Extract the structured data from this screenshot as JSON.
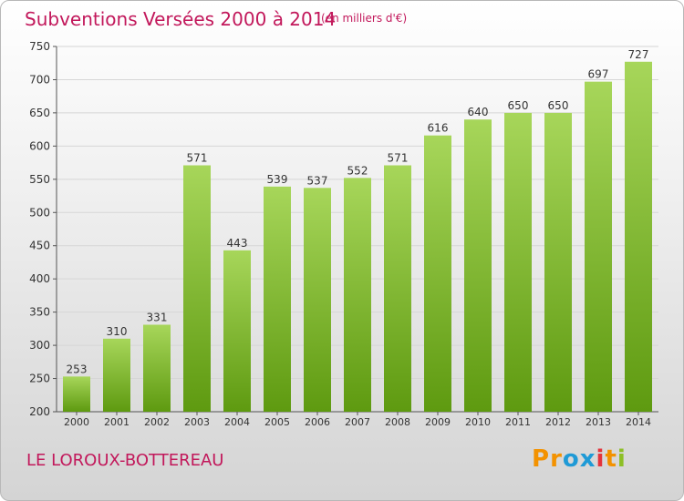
{
  "header": {
    "title": "Subventions Versées 2000 à 2014",
    "subtitle": "(en milliers d'€)"
  },
  "footer": {
    "town": "LE LOROUX-BOTTEREAU",
    "logo_text": "Proxiti"
  },
  "colors": {
    "bar_light": "#a7d65a",
    "bar_dark": "#5e9a10",
    "title": "#c2185b",
    "logo_letters": [
      "#f39200",
      "#f39200",
      "#1f9ad6",
      "#1f9ad6",
      "#e4343c",
      "#f39200",
      "#8dbf26"
    ]
  },
  "chart_data": {
    "type": "bar",
    "title": "Subventions Versées 2000 à 2014",
    "xlabel": "",
    "ylabel": "",
    "categories": [
      "2000",
      "2001",
      "2002",
      "2003",
      "2004",
      "2005",
      "2006",
      "2007",
      "2008",
      "2009",
      "2010",
      "2011",
      "2012",
      "2013",
      "2014"
    ],
    "values": [
      253,
      310,
      331,
      571,
      443,
      539,
      537,
      552,
      571,
      616,
      640,
      650,
      650,
      697,
      727
    ],
    "ylim": [
      200,
      750
    ],
    "yticks": [
      200,
      250,
      300,
      350,
      400,
      450,
      500,
      550,
      600,
      650,
      700,
      750
    ],
    "grid": true,
    "data_labels": true
  }
}
